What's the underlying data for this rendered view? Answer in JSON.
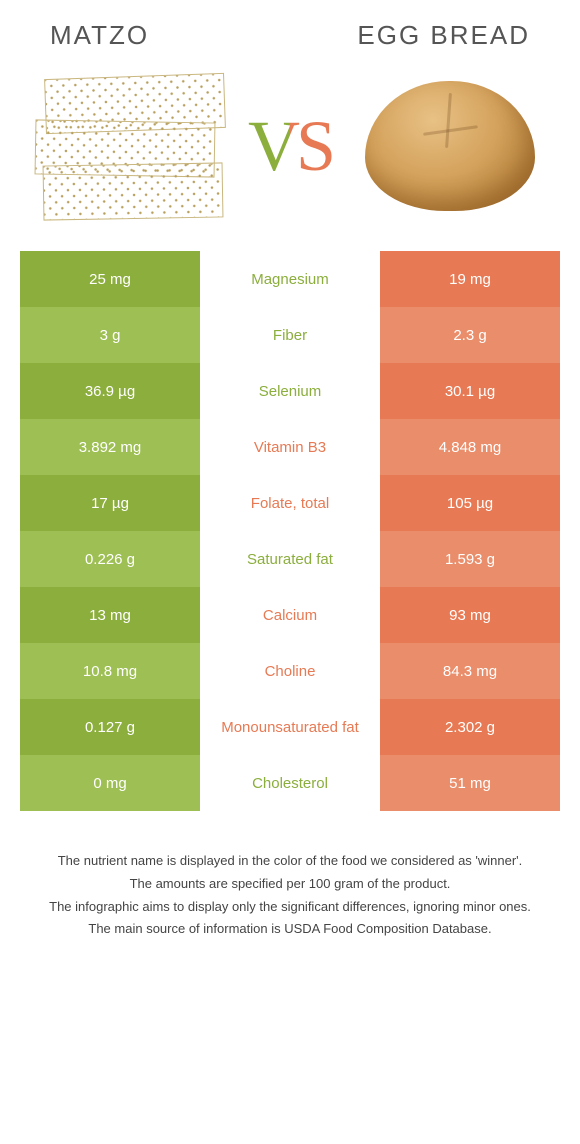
{
  "colors": {
    "green": "#8bae3d",
    "orange": "#e77a54",
    "green_alt": "#9dbf53",
    "orange_alt": "#ea8d6a"
  },
  "left_title": "Matzo",
  "right_title": "Egg bread",
  "vs_label": "VS",
  "rows": [
    {
      "label": "Magnesium",
      "left": "25 mg",
      "right": "19 mg",
      "winner": "left"
    },
    {
      "label": "Fiber",
      "left": "3 g",
      "right": "2.3 g",
      "winner": "left"
    },
    {
      "label": "Selenium",
      "left": "36.9 µg",
      "right": "30.1 µg",
      "winner": "left"
    },
    {
      "label": "Vitamin B3",
      "left": "3.892 mg",
      "right": "4.848 mg",
      "winner": "right"
    },
    {
      "label": "Folate, total",
      "left": "17 µg",
      "right": "105 µg",
      "winner": "right"
    },
    {
      "label": "Saturated fat",
      "left": "0.226 g",
      "right": "1.593 g",
      "winner": "left"
    },
    {
      "label": "Calcium",
      "left": "13 mg",
      "right": "93 mg",
      "winner": "right"
    },
    {
      "label": "Choline",
      "left": "10.8 mg",
      "right": "84.3 mg",
      "winner": "right"
    },
    {
      "label": "Monounsaturated fat",
      "left": "0.127 g",
      "right": "2.302 g",
      "winner": "right"
    },
    {
      "label": "Cholesterol",
      "left": "0 mg",
      "right": "51 mg",
      "winner": "left"
    }
  ],
  "notes": [
    "The nutrient name is displayed in the color of the food we considered as 'winner'.",
    "The amounts are specified per 100 gram of the product.",
    "The infographic aims to display only the significant differences, ignoring minor ones.",
    "The main source of information is USDA Food Composition Database."
  ]
}
